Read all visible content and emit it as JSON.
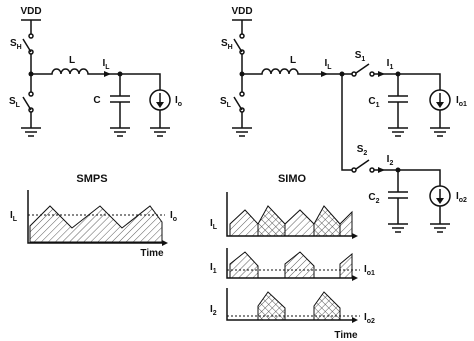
{
  "smps_circuit": {
    "supply": "VDD",
    "high_switch": {
      "main": "S",
      "sub": "H"
    },
    "low_switch": {
      "main": "S",
      "sub": "L"
    },
    "inductor": "L",
    "inductor_current": {
      "main": "I",
      "sub": "L"
    },
    "capacitor": "C",
    "load_current": {
      "main": "I",
      "sub": "o"
    }
  },
  "smps_waveform": {
    "title": "SMPS",
    "y_label": {
      "main": "I",
      "sub": "L"
    },
    "level_label": {
      "main": "I",
      "sub": "o"
    },
    "x_label": "Time"
  },
  "simo_circuit": {
    "supply": "VDD",
    "high_switch": {
      "main": "S",
      "sub": "H"
    },
    "low_switch": {
      "main": "S",
      "sub": "L"
    },
    "inductor": "L",
    "inductor_current": {
      "main": "I",
      "sub": "L"
    },
    "switch_1": {
      "main": "S",
      "sub": "1"
    },
    "output_1_current": {
      "main": "I",
      "sub": "1"
    },
    "capacitor_1": {
      "main": "C",
      "sub": "1"
    },
    "load_1_current": {
      "main": "I",
      "sub": "o1"
    },
    "switch_2": {
      "main": "S",
      "sub": "2"
    },
    "output_2_current": {
      "main": "I",
      "sub": "2"
    },
    "capacitor_2": {
      "main": "C",
      "sub": "2"
    },
    "load_2_current": {
      "main": "I",
      "sub": "o2"
    }
  },
  "simo_waveform": {
    "title": "SIMO",
    "inductor_label": {
      "main": "I",
      "sub": "L"
    },
    "output_1_label": {
      "main": "I",
      "sub": "1"
    },
    "level_1_label": {
      "main": "I",
      "sub": "o1"
    },
    "output_2_label": {
      "main": "I",
      "sub": "2"
    },
    "level_2_label": {
      "main": "I",
      "sub": "o2"
    },
    "x_label": "Time"
  }
}
